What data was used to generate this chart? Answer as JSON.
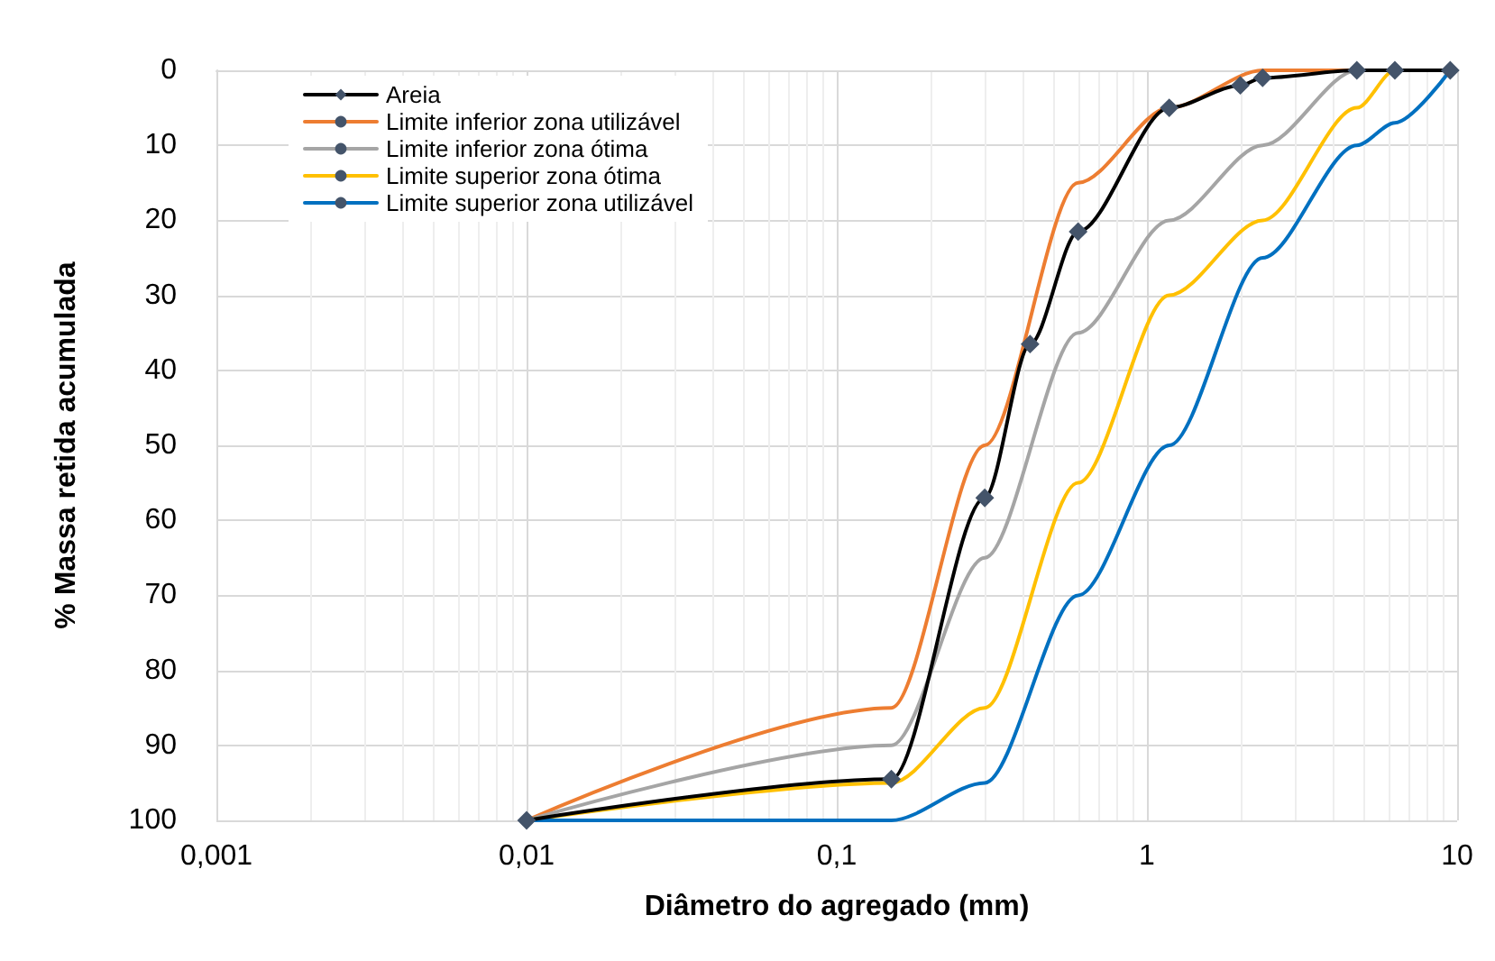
{
  "chart_data": {
    "type": "line",
    "xlabel": "Diâmetro do agregado (mm)",
    "ylabel": "% Massa retida acumulada",
    "log": "x",
    "grid": true,
    "legend": "top left",
    "line_style": "solid",
    "xlim": [
      0.001,
      10
    ],
    "xticks": [
      {
        "value": 0.001,
        "label": "0,001"
      },
      {
        "value": 0.01,
        "label": "0,01"
      },
      {
        "value": 0.1,
        "label": "0,1"
      },
      1,
      10
    ],
    "ylim": [
      100,
      0
    ],
    "yticks": [
      0,
      10,
      20,
      30,
      40,
      50,
      60,
      70,
      80,
      90,
      100
    ],
    "series": [
      {
        "name": "Areia",
        "color": "#000000",
        "marker": "diamond",
        "x": [
          9.5,
          6.3,
          4.75,
          2.36,
          2.0,
          1.18,
          0.6,
          0.42,
          0.3,
          0.15,
          0.01
        ],
        "values": [
          0,
          0,
          0,
          1,
          2,
          5,
          21.5,
          36.5,
          57,
          94.5,
          100
        ]
      },
      {
        "name": "Limite inferior zona utilizável",
        "color": "#ed7d31",
        "marker": "none",
        "x": [
          9.5,
          6.3,
          4.75,
          2.36,
          1.18,
          0.6,
          0.3,
          0.15,
          0.01
        ],
        "values": [
          0,
          0,
          0,
          0,
          5,
          15,
          50,
          85,
          100
        ]
      },
      {
        "name": "Limite inferior zona ótima",
        "color": "#a5a5a5",
        "marker": "none",
        "x": [
          9.5,
          6.3,
          4.75,
          2.36,
          1.18,
          0.6,
          0.3,
          0.15,
          0.01
        ],
        "values": [
          0,
          0,
          0,
          10,
          20,
          35,
          65,
          90,
          100
        ]
      },
      {
        "name": "Limite superior zona ótima",
        "color": "#ffc000",
        "marker": "none",
        "x": [
          9.5,
          6.3,
          4.75,
          2.36,
          1.18,
          0.6,
          0.3,
          0.15,
          0.01
        ],
        "values": [
          0,
          0,
          5,
          20,
          30,
          55,
          85,
          95,
          100
        ]
      },
      {
        "name": "Limite superior zona utilizável",
        "color": "#0070c0",
        "marker": "none",
        "x": [
          9.5,
          6.3,
          4.75,
          2.36,
          1.18,
          0.6,
          0.3,
          0.15,
          0.01
        ],
        "values": [
          0,
          7,
          10,
          25,
          50,
          70,
          95,
          100,
          100
        ]
      }
    ]
  }
}
